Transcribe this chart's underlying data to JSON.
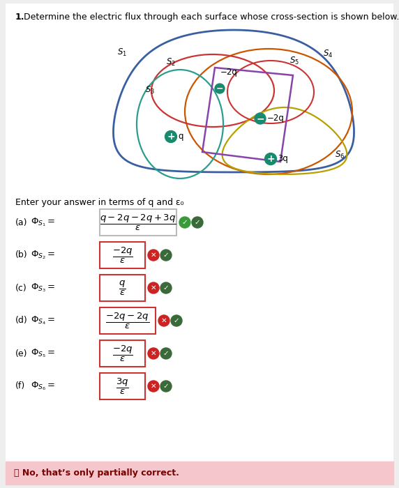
{
  "title_num": "1.",
  "title_text": "Determine the electric flux through each surface whose cross-section is shown below.",
  "subtitle": "Enter your answer in terms of q and ε₀",
  "diagram": {
    "s1_color": "#3a5fa0",
    "s2_color": "#cc3333",
    "s3_color": "#2a9d8f",
    "s4_color": "#cc5500",
    "s5_color": "#cc3333",
    "s6_color": "#b8a000",
    "rect_color": "#8844aa",
    "charge_circle_color": "#1a8a6e",
    "charge_circle_color2": "#1a6a8a"
  },
  "answers": [
    {
      "letter": "(a)",
      "sub": "1",
      "numerator": "q-2q-2q+3q",
      "denominator": "ε",
      "correct": true
    },
    {
      "letter": "(b)",
      "sub": "2",
      "numerator": "-2q",
      "denominator": "ε",
      "correct": false
    },
    {
      "letter": "(c)",
      "sub": "3",
      "numerator": "q",
      "denominator": "ε",
      "correct": false
    },
    {
      "letter": "(d)",
      "sub": "4",
      "numerator": "-2q-2q",
      "denominator": "ε",
      "correct": false
    },
    {
      "letter": "(e)",
      "sub": "5",
      "numerator": "-2q",
      "denominator": "ε",
      "correct": false
    },
    {
      "letter": "(f)",
      "sub": "6",
      "numerator": "3q",
      "denominator": "ε",
      "correct": false
    }
  ],
  "footer_text": "❗ No, that’s only partially correct.",
  "footer_bg": "#f5c6cb",
  "footer_text_color": "#7b0000"
}
